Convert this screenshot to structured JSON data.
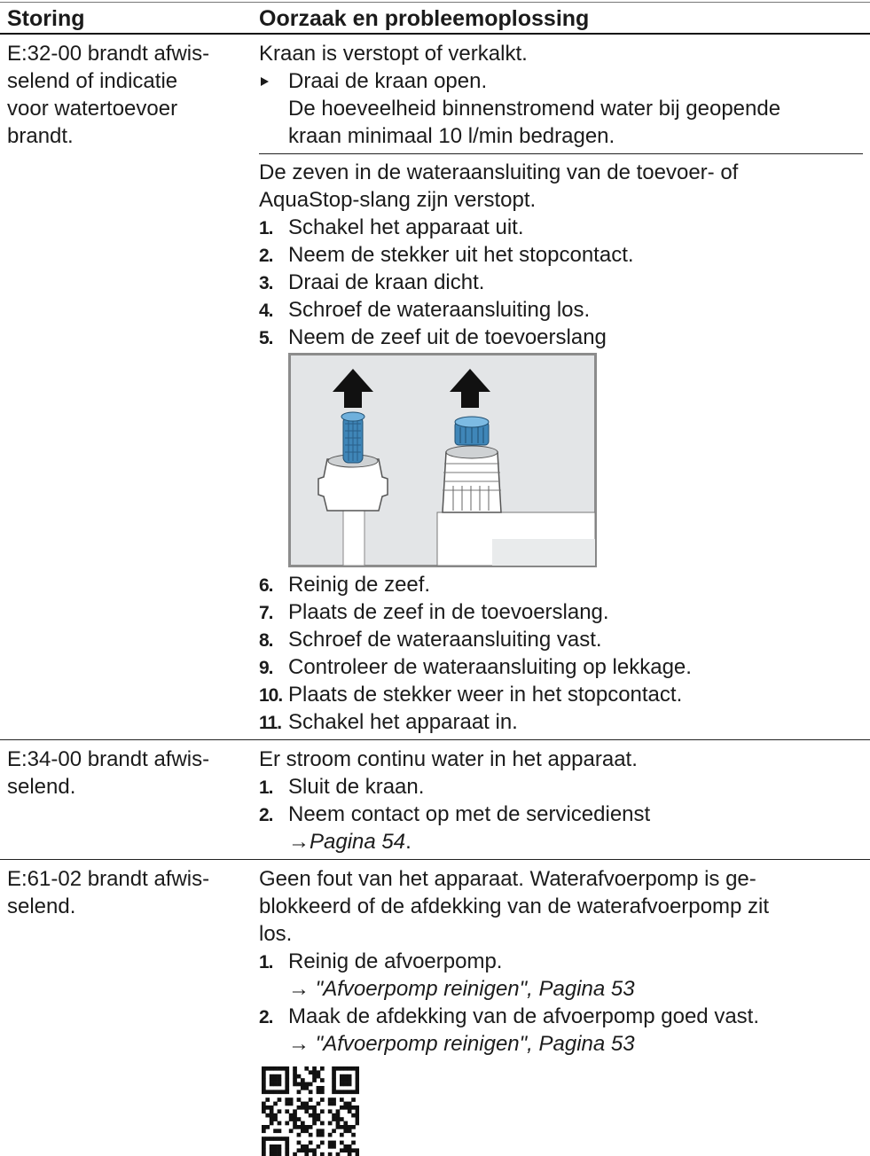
{
  "table": {
    "header": [
      "Storing",
      "Oorzaak en probleemoplossing"
    ],
    "rows": [
      {
        "fault": [
          "E:32-00 brandt afwis-",
          "selend of indicatie",
          "voor watertoevoer",
          "brandt."
        ],
        "causes": [
          {
            "text": [
              "Kraan is verstopt of verkalkt."
            ],
            "action": "Draai de kraan open.",
            "result": [
              "De hoeveelheid binnenstromend water bij geopende",
              "kraan minimaal 10 l/min bedragen."
            ]
          },
          {
            "text": [
              "De zeven in de wateraansluiting van de toevoer- of",
              "AquaStop-slang zijn verstopt."
            ],
            "steps": [
              {
                "number": "1.",
                "text": "Schakel het apparaat uit."
              },
              {
                "number": "2.",
                "text": "Neem de stekker uit het stopcontact."
              },
              {
                "number": "3.",
                "text": "Draai de kraan dicht."
              },
              {
                "number": "4.",
                "text": "Schroef de wateraansluiting los."
              },
              {
                "number": "5.",
                "text": "Neem de zeef uit de toevoerslang"
              }
            ],
            "steps_continued": [
              {
                "number": "6.",
                "text": "Reinig de zeef."
              },
              {
                "number": "7.",
                "text": "Plaats de zeef in de toevoerslang."
              },
              {
                "number": "8.",
                "text": "Schroef de wateraansluiting vast."
              },
              {
                "number": "9.",
                "text": "Controleer de wateraansluiting op lekkage."
              },
              {
                "number": "10.",
                "text": "Plaats de stekker weer in het stopcontact."
              },
              {
                "number": "11.",
                "text": "Schakel het apparaat in."
              }
            ]
          }
        ]
      },
      {
        "fault": [
          "E:34-00 brandt afwis-",
          "selend."
        ],
        "causes": [
          {
            "text": [
              "Er stroom continu water in het apparaat."
            ],
            "steps": [
              {
                "number": "1.",
                "text": "Sluit de kraan."
              },
              {
                "number": "2.",
                "text": "Neem contact op met de servicedienst",
                "link": "→Pagina 54",
                "link_suffix": "."
              }
            ]
          }
        ]
      },
      {
        "fault": [
          "E:61-02 brandt afwis-",
          "selend."
        ],
        "causes": [
          {
            "text": [
              "Geen fout van het apparaat. Waterafvoerpomp is ge-",
              "blokkeerd of de afdekking van de waterafvoerpomp zit",
              "los."
            ],
            "steps": [
              {
                "number": "1.",
                "text": "Reinig de afvoerpomp.",
                "link": "→ \"Afvoerpomp reinigen\", Pagina 53"
              },
              {
                "number": "2.",
                "text": "Maak de afdekking van de afvoerpomp goed vast.",
                "link": "→ \"Afvoerpomp reinigen\", Pagina 53"
              }
            ]
          }
        ]
      }
    ]
  }
}
